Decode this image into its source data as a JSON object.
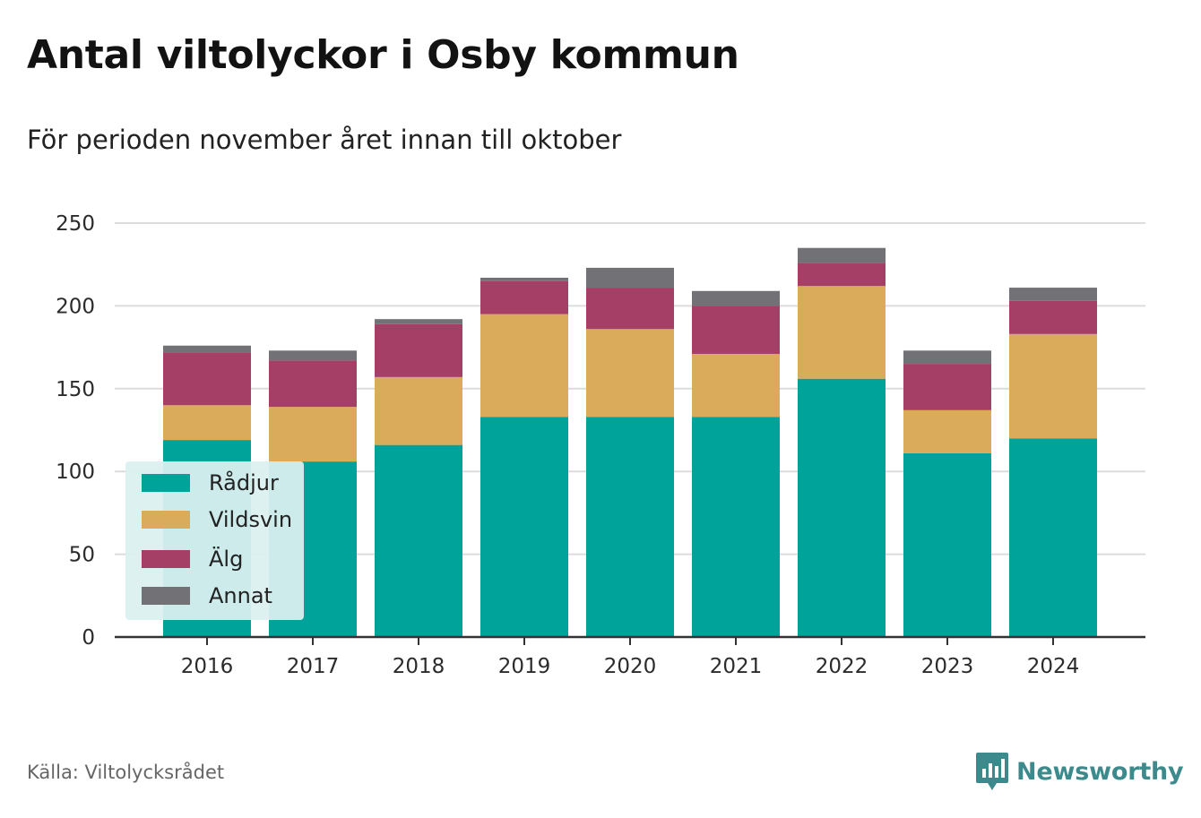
{
  "title": "Antal viltolyckor i Osby kommun",
  "subtitle": "För perioden november året innan till oktober",
  "source": "Källa: Viltolycksrådet",
  "brand": {
    "name": "Newsworthy",
    "icon": "newsworthy-logo-icon",
    "color": "#3d8a8c"
  },
  "chart_data": {
    "type": "bar",
    "stacked": true,
    "title": "Antal viltolyckor i Osby kommun",
    "subtitle": "För perioden november året innan till oktober",
    "xlabel": "",
    "ylabel": "",
    "ylim": [
      0,
      250
    ],
    "yticks": [
      0,
      50,
      100,
      150,
      200,
      250
    ],
    "grid": true,
    "legend_position": "bottom-left",
    "categories": [
      "2016",
      "2017",
      "2018",
      "2019",
      "2020",
      "2021",
      "2022",
      "2023",
      "2024"
    ],
    "series": [
      {
        "name": "Rådjur",
        "color": "#00a39a",
        "values": [
          119,
          106,
          116,
          133,
          133,
          133,
          156,
          111,
          120
        ]
      },
      {
        "name": "Vildsvin",
        "color": "#d9ab5b",
        "values": [
          21,
          33,
          41,
          62,
          53,
          38,
          56,
          26,
          63
        ]
      },
      {
        "name": "Älg",
        "color": "#a63f65",
        "values": [
          32,
          28,
          32,
          20,
          25,
          29,
          14,
          28,
          20
        ]
      },
      {
        "name": "Annat",
        "color": "#717176",
        "values": [
          4,
          6,
          3,
          2,
          12,
          9,
          9,
          8,
          8
        ]
      }
    ]
  }
}
